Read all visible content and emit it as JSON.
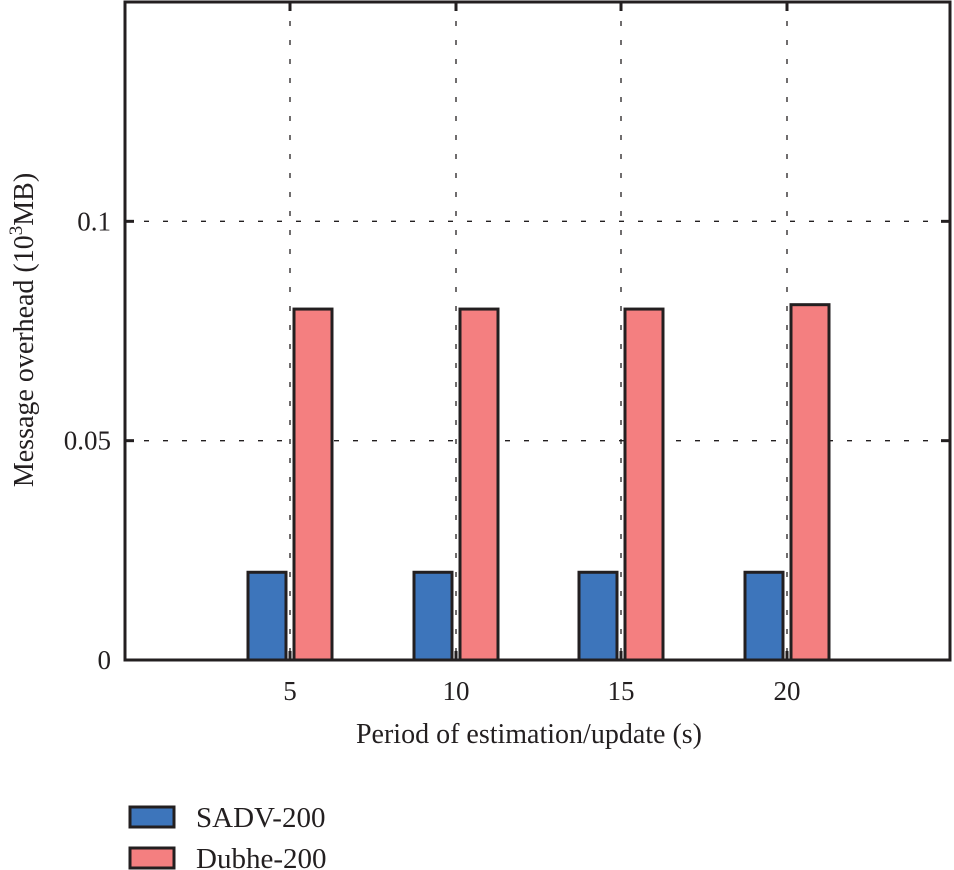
{
  "chart_data": {
    "type": "bar",
    "title": "",
    "xlabel": "Period of estimation/update (s)",
    "ylabel": "Message overhead (10^3MB)",
    "ylabel_parts": {
      "prefix": "Message overhead (10",
      "sup": "3",
      "suffix": "MB)"
    },
    "categories": [
      "5",
      "10",
      "15",
      "20"
    ],
    "series": [
      {
        "name": "SADV-200",
        "color": "#3d75bb",
        "values": [
          0.02,
          0.02,
          0.02,
          0.02
        ]
      },
      {
        "name": "Dubhe-200",
        "color": "#f47f80",
        "values": [
          0.08,
          0.08,
          0.08,
          0.081
        ]
      }
    ],
    "ylim": [
      0,
      0.15
    ],
    "yticks": [
      0,
      0.05,
      0.1
    ],
    "ytick_labels": [
      "0",
      "0.05",
      "0.1"
    ],
    "grid": true,
    "legend_position": "bottom-left"
  }
}
